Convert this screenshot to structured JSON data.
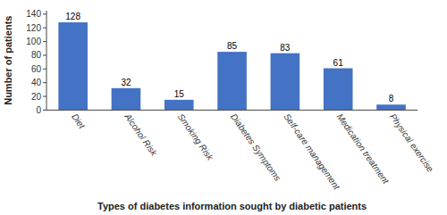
{
  "chart_data": {
    "type": "bar",
    "categories": [
      "Diet",
      "Alcohol Risk",
      "Smoking Risk",
      "Diabetes Symptoms",
      "Self-care management",
      "Medication treatment",
      "Physical exercise"
    ],
    "values": [
      128,
      32,
      15,
      85,
      83,
      61,
      8
    ],
    "color": "#4472C4",
    "xlabel": "Types of diabetes information sought by diabetic patients",
    "ylabel": "Number of patients",
    "ylim": [
      0,
      145
    ],
    "yticks": [
      0,
      20,
      40,
      60,
      80,
      100,
      120,
      140
    ],
    "grid": false,
    "data_labels": true
  }
}
